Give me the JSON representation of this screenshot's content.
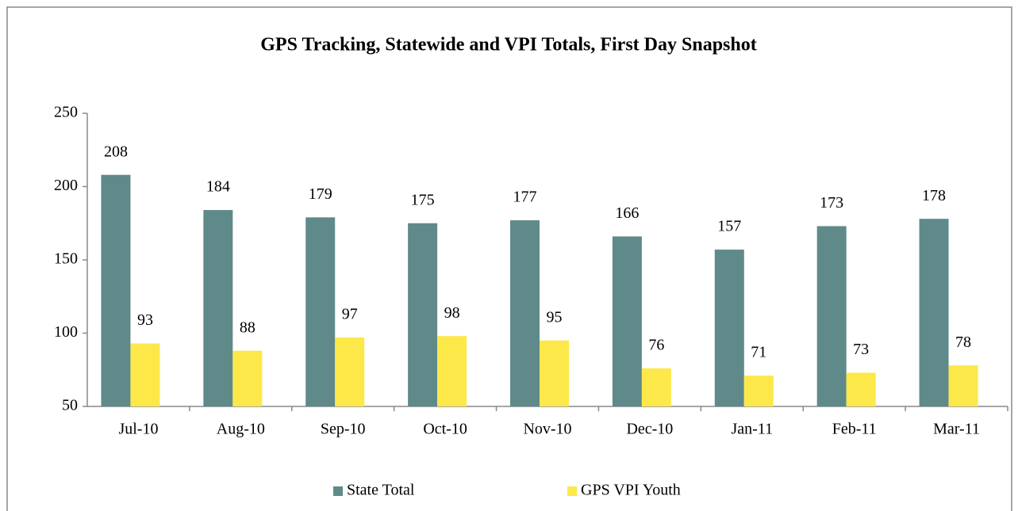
{
  "chart_data": {
    "type": "bar",
    "title": "GPS Tracking, Statewide and VPI Totals, First Day Snapshot",
    "categories": [
      "Jul-10",
      "Aug-10",
      "Sep-10",
      "Oct-10",
      "Nov-10",
      "Dec-10",
      "Jan-11",
      "Feb-11",
      "Mar-11"
    ],
    "series": [
      {
        "name": "State Total",
        "color": "#5f8a89",
        "values": [
          208,
          184,
          179,
          175,
          177,
          166,
          157,
          173,
          178
        ]
      },
      {
        "name": "GPS VPI Youth",
        "color": "#fde84a",
        "values": [
          93,
          88,
          97,
          98,
          95,
          76,
          71,
          73,
          78
        ]
      }
    ],
    "ylim": [
      50,
      250
    ],
    "yticks": [
      50,
      100,
      150,
      200,
      250
    ],
    "grid": false,
    "legend": "bottom"
  }
}
